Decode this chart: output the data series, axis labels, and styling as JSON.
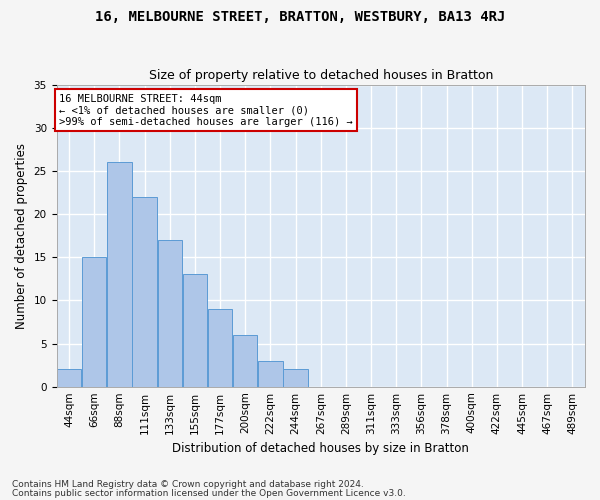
{
  "title": "16, MELBOURNE STREET, BRATTON, WESTBURY, BA13 4RJ",
  "subtitle": "Size of property relative to detached houses in Bratton",
  "xlabel": "Distribution of detached houses by size in Bratton",
  "ylabel": "Number of detached properties",
  "bar_values": [
    2,
    15,
    26,
    22,
    17,
    13,
    9,
    6,
    3,
    2,
    0,
    0,
    0,
    0,
    0,
    0,
    0,
    0,
    0,
    0,
    0
  ],
  "bar_labels": [
    "44sqm",
    "66sqm",
    "88sqm",
    "111sqm",
    "133sqm",
    "155sqm",
    "177sqm",
    "200sqm",
    "222sqm",
    "244sqm",
    "267sqm",
    "289sqm",
    "311sqm",
    "333sqm",
    "356sqm",
    "378sqm",
    "400sqm",
    "422sqm",
    "445sqm",
    "467sqm",
    "489sqm"
  ],
  "bar_color": "#aec6e8",
  "bar_edge_color": "#5b9bd5",
  "annotation_box_text": "16 MELBOURNE STREET: 44sqm\n← <1% of detached houses are smaller (0)\n>99% of semi-detached houses are larger (116) →",
  "annotation_box_color": "#ffffff",
  "annotation_box_edge_color": "#cc0000",
  "ylim": [
    0,
    35
  ],
  "yticks": [
    0,
    5,
    10,
    15,
    20,
    25,
    30,
    35
  ],
  "background_color": "#dce8f5",
  "grid_color": "#ffffff",
  "footer_line1": "Contains HM Land Registry data © Crown copyright and database right 2024.",
  "footer_line2": "Contains public sector information licensed under the Open Government Licence v3.0.",
  "title_fontsize": 10,
  "subtitle_fontsize": 9,
  "xlabel_fontsize": 8.5,
  "ylabel_fontsize": 8.5,
  "tick_fontsize": 7.5,
  "annotation_fontsize": 7.5,
  "footer_fontsize": 6.5
}
